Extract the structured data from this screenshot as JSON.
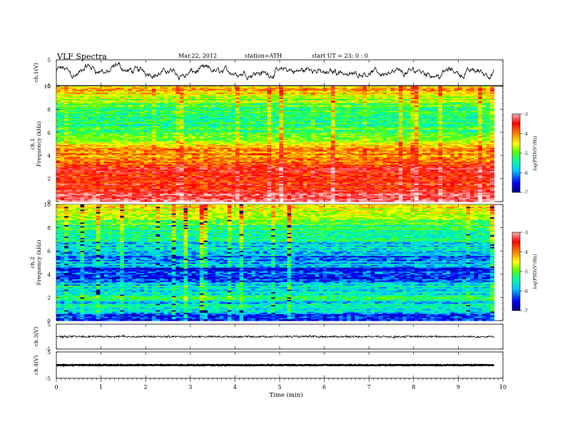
{
  "header": {
    "title": "VLF  Spectra",
    "date": "Mar.22, 2012",
    "station": "station=ATH",
    "start": "start  UT  =   23: 0  : 0"
  },
  "chart_data": [
    {
      "type": "line",
      "panel": "ch1-waveform",
      "ylabel": "ch.1(V)",
      "yticks": [
        "5",
        "-5"
      ],
      "ylim": [
        -5,
        5
      ],
      "xlim": [
        0,
        10
      ],
      "data_end_min": 9.8,
      "style": "dense noisy waveform, amplitude roughly 2 V to 4 V, offset near +0.5 V"
    },
    {
      "type": "heatmap",
      "panel": "ch1-spectrogram",
      "ylabel": "ch.1\nFrequency  (kHz)",
      "yticks": [
        "0",
        "2",
        "4",
        "6",
        "8",
        "10"
      ],
      "ylim": [
        0,
        10
      ],
      "xlim": [
        0,
        10
      ],
      "colorbar": {
        "label": "log(PSD)(V²/Hz)",
        "ticks": [
          "-3",
          "-4",
          "-5",
          "-6",
          "-7"
        ],
        "range": [
          -7,
          -3
        ]
      },
      "profile_khz_logpsd": [
        [
          0.0,
          -3.3
        ],
        [
          0.5,
          -3.6
        ],
        [
          1.0,
          -3.8
        ],
        [
          1.5,
          -3.9
        ],
        [
          2.0,
          -3.9
        ],
        [
          2.5,
          -3.85
        ],
        [
          3.0,
          -3.9
        ],
        [
          3.5,
          -4.3
        ],
        [
          4.0,
          -4.5
        ],
        [
          4.5,
          -4.4
        ],
        [
          5.0,
          -4.8
        ],
        [
          5.5,
          -5.4
        ],
        [
          6.0,
          -5.3
        ],
        [
          6.5,
          -5.6
        ],
        [
          7.0,
          -5.6
        ],
        [
          7.5,
          -5.5
        ],
        [
          8.0,
          -5.4
        ],
        [
          8.5,
          -5.2
        ],
        [
          9.0,
          -5.0
        ],
        [
          9.5,
          -4.6
        ],
        [
          10.0,
          -4.5
        ]
      ]
    },
    {
      "type": "heatmap",
      "panel": "ch2-spectrogram",
      "ylabel": "ch.2\nFrequency  (kHz)",
      "yticks": [
        "0",
        "2",
        "4",
        "6",
        "8",
        "10"
      ],
      "ylim": [
        0,
        10
      ],
      "xlim": [
        0,
        10
      ],
      "colorbar": {
        "label": "log(PSD)(V²/Hz)",
        "ticks": [
          "-3",
          "-4",
          "-5",
          "-6",
          "-7"
        ],
        "range": [
          -7,
          -3
        ]
      },
      "profile_khz_logpsd": [
        [
          0.0,
          -6.5
        ],
        [
          0.5,
          -6.3
        ],
        [
          1.0,
          -5.9
        ],
        [
          1.5,
          -5.9
        ],
        [
          2.0,
          -5.6
        ],
        [
          2.5,
          -5.9
        ],
        [
          3.0,
          -5.8
        ],
        [
          3.5,
          -6.4
        ],
        [
          4.0,
          -6.3
        ],
        [
          4.5,
          -6.5
        ],
        [
          5.0,
          -6.0
        ],
        [
          5.5,
          -6.3
        ],
        [
          6.0,
          -5.8
        ],
        [
          6.5,
          -6.0
        ],
        [
          7.0,
          -5.7
        ],
        [
          7.5,
          -5.6
        ],
        [
          8.0,
          -5.5
        ],
        [
          8.5,
          -5.4
        ],
        [
          9.0,
          -5.0
        ],
        [
          9.5,
          -4.8
        ],
        [
          10.0,
          -4.9
        ]
      ]
    },
    {
      "type": "line",
      "panel": "ch3-waveform",
      "ylabel": "ch.3(V)",
      "yticks": [
        "5",
        "-5"
      ],
      "ylim": [
        -5,
        5
      ],
      "xlim": [
        0,
        10
      ],
      "data_end_min": 9.8,
      "style": "near-flat trace around 0 V with small noise (~0.3 V)"
    },
    {
      "type": "line",
      "panel": "ch4-waveform",
      "ylabel": "ch.4(V)",
      "yticks": [
        "5",
        "-5"
      ],
      "ylim": [
        -5,
        5
      ],
      "xlim": [
        0,
        10
      ],
      "data_end_min": 9.8,
      "style": "flat thick trace near 0 V"
    }
  ],
  "xaxis": {
    "label": "Time  (min)",
    "ticks": [
      "0",
      "1",
      "2",
      "3",
      "4",
      "5",
      "6",
      "7",
      "8",
      "9",
      "10"
    ],
    "range": [
      0,
      10
    ]
  },
  "colors": {
    "colormap": [
      "#000080",
      "#0000ff",
      "#00c8ff",
      "#00ffa0",
      "#60ff00",
      "#ffff00",
      "#ff8000",
      "#ff0000",
      "#ff9090",
      "#ffffff"
    ]
  }
}
